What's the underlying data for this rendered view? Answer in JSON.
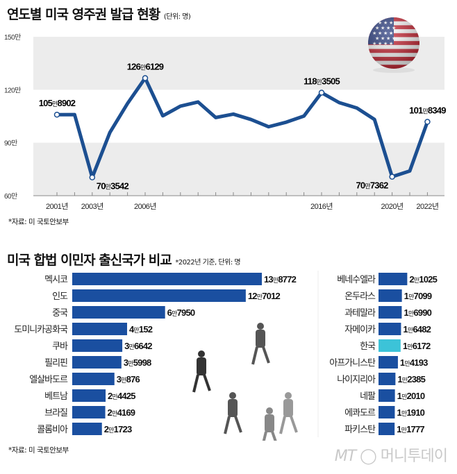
{
  "chart_data": [
    {
      "type": "line",
      "title": "연도별 미국 영주권 발급 현황",
      "unit_note": "(단위: 명)",
      "x": [
        2001,
        2002,
        2003,
        2004,
        2005,
        2006,
        2007,
        2008,
        2009,
        2010,
        2011,
        2012,
        2013,
        2014,
        2015,
        2016,
        2017,
        2018,
        2019,
        2020,
        2021,
        2022
      ],
      "values": [
        1058902,
        1059356,
        703542,
        957883,
        1122257,
        1266129,
        1052415,
        1107126,
        1130818,
        1042625,
        1062040,
        1031631,
        990553,
        1016518,
        1051031,
        1183505,
        1127167,
        1096611,
        1031765,
        707362,
        740002,
        1018349
      ],
      "ylim": [
        600000,
        1500000
      ],
      "yticks": [
        {
          "v": 600000,
          "label": "60만"
        },
        {
          "v": 900000,
          "label": "90만"
        },
        {
          "v": 1200000,
          "label": "120만"
        },
        {
          "v": 1500000,
          "label": "150만"
        }
      ],
      "xticks": [
        {
          "v": 2001,
          "label": "2001년"
        },
        {
          "v": 2003,
          "label": "2003년"
        },
        {
          "v": 2006,
          "label": "2006년"
        },
        {
          "v": 2016,
          "label": "2016년"
        },
        {
          "v": 2020,
          "label": "2020년"
        },
        {
          "v": 2022,
          "label": "2022년"
        }
      ],
      "annotations": [
        {
          "x": 2001,
          "a": "105",
          "b": "만",
          "c": "8902",
          "pos": "above"
        },
        {
          "x": 2003,
          "a": "70",
          "b": "만",
          "c": "3542",
          "pos": "below-right"
        },
        {
          "x": 2006,
          "a": "126",
          "b": "만",
          "c": "6129",
          "pos": "above"
        },
        {
          "x": 2016,
          "a": "118",
          "b": "만",
          "c": "3505",
          "pos": "above"
        },
        {
          "x": 2020,
          "a": "70",
          "b": "만",
          "c": "7362",
          "pos": "below-left"
        },
        {
          "x": 2022,
          "a": "101",
          "b": "만",
          "c": "8349",
          "pos": "above"
        }
      ],
      "grid_bands": "alternating gray",
      "line_color": "#1c4f91",
      "source": "*자료: 미 국토안보부"
    },
    {
      "type": "bar",
      "orientation": "horizontal",
      "title": "미국 합법 이민자 출신국가 비교",
      "unit_note": "*2022년 기준, 단위: 명",
      "bar_color": "#1a4fa0",
      "highlight_color": "#3cc3d8",
      "left": [
        {
          "name": "멕시코",
          "value": 138772,
          "a": "13",
          "c": "8772"
        },
        {
          "name": "인도",
          "value": 127012,
          "a": "12",
          "c": "7012"
        },
        {
          "name": "중국",
          "value": 67950,
          "a": "6",
          "c": "7950"
        },
        {
          "name": "도미니카공화국",
          "value": 40152,
          "a": "4",
          "c": "152"
        },
        {
          "name": "쿠바",
          "value": 36642,
          "a": "3",
          "c": "6642"
        },
        {
          "name": "필리핀",
          "value": 35998,
          "a": "3",
          "c": "5998"
        },
        {
          "name": "엘살바도르",
          "value": 30876,
          "a": "3",
          "c": "876"
        },
        {
          "name": "베트남",
          "value": 24425,
          "a": "2",
          "c": "4425"
        },
        {
          "name": "브라질",
          "value": 24169,
          "a": "2",
          "c": "4169"
        },
        {
          "name": "콜롬비아",
          "value": 21723,
          "a": "2",
          "c": "1723"
        }
      ],
      "right": [
        {
          "name": "베네수엘라",
          "value": 21025,
          "a": "2",
          "c": "1025"
        },
        {
          "name": "온두라스",
          "value": 17099,
          "a": "1",
          "c": "7099"
        },
        {
          "name": "과테말라",
          "value": 16990,
          "a": "1",
          "c": "6990"
        },
        {
          "name": "자메이카",
          "value": 16482,
          "a": "1",
          "c": "6482"
        },
        {
          "name": "한국",
          "value": 16172,
          "a": "1",
          "c": "6172",
          "highlight": true
        },
        {
          "name": "아프가니스탄",
          "value": 14193,
          "a": "1",
          "c": "4193"
        },
        {
          "name": "나이지리아",
          "value": 12385,
          "a": "1",
          "c": "2385"
        },
        {
          "name": "네팔",
          "value": 12010,
          "a": "1",
          "c": "2010"
        },
        {
          "name": "에콰도르",
          "value": 11910,
          "a": "1",
          "c": "1910"
        },
        {
          "name": "파키스탄",
          "value": 11777,
          "a": "1",
          "c": "1777"
        }
      ],
      "man_unit": "만",
      "source": "*자료: 미 국토안보부"
    }
  ],
  "watermark": {
    "mt": "MT",
    "name": "머니투데이"
  }
}
